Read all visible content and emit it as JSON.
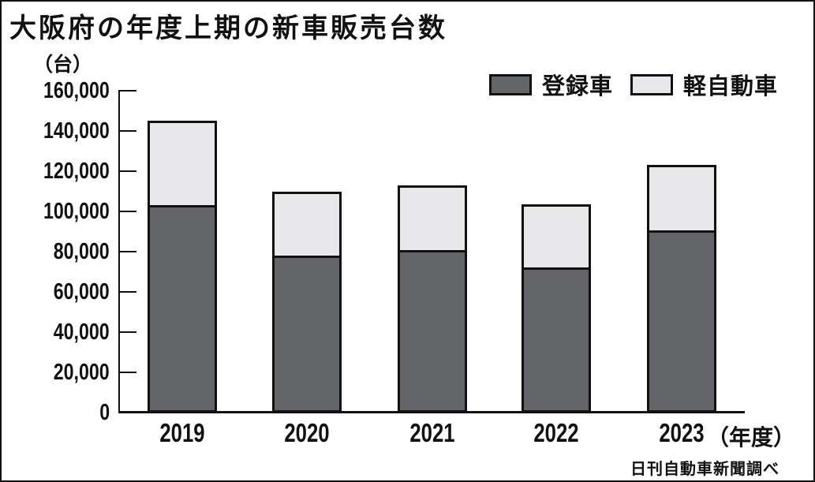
{
  "title": "大阪府の年度上期の新車販売台数",
  "unit_label": "（台）",
  "source": "日刊自動車新聞調べ",
  "x_axis_suffix": "（年度）",
  "colors": {
    "registered_car": "#636569",
    "kei_car": "#e8e8ea",
    "line": "#111111",
    "background": "#ffffff"
  },
  "legend": [
    {
      "label": "登録車",
      "color": "#636569"
    },
    {
      "label": "軽自動車",
      "color": "#e8e8ea"
    }
  ],
  "chart_data": {
    "type": "bar",
    "stacked": true,
    "title": "大阪府の年度上期の新車販売台数",
    "categories": [
      "2019",
      "2020",
      "2021",
      "2022",
      "2023"
    ],
    "series": [
      {
        "name": "登録車",
        "color": "#636569",
        "values": [
          102000,
          77000,
          79500,
          71000,
          89500
        ]
      },
      {
        "name": "軽自動車",
        "color": "#e8e8ea",
        "values": [
          43000,
          33000,
          33500,
          32500,
          33500
        ]
      }
    ],
    "totals": [
      145000,
      110000,
      113000,
      103500,
      123000
    ],
    "xlabel": "年度",
    "ylabel": "台",
    "ylim": [
      0,
      160000
    ],
    "ytick_interval": 20000,
    "ytick_labels": [
      "0",
      "20,000",
      "40,000",
      "60,000",
      "80,000",
      "100,000",
      "120,000",
      "140,000",
      "160,000"
    ],
    "grid": false,
    "legend_position": "top-right",
    "source": "日刊自動車新聞調べ"
  }
}
